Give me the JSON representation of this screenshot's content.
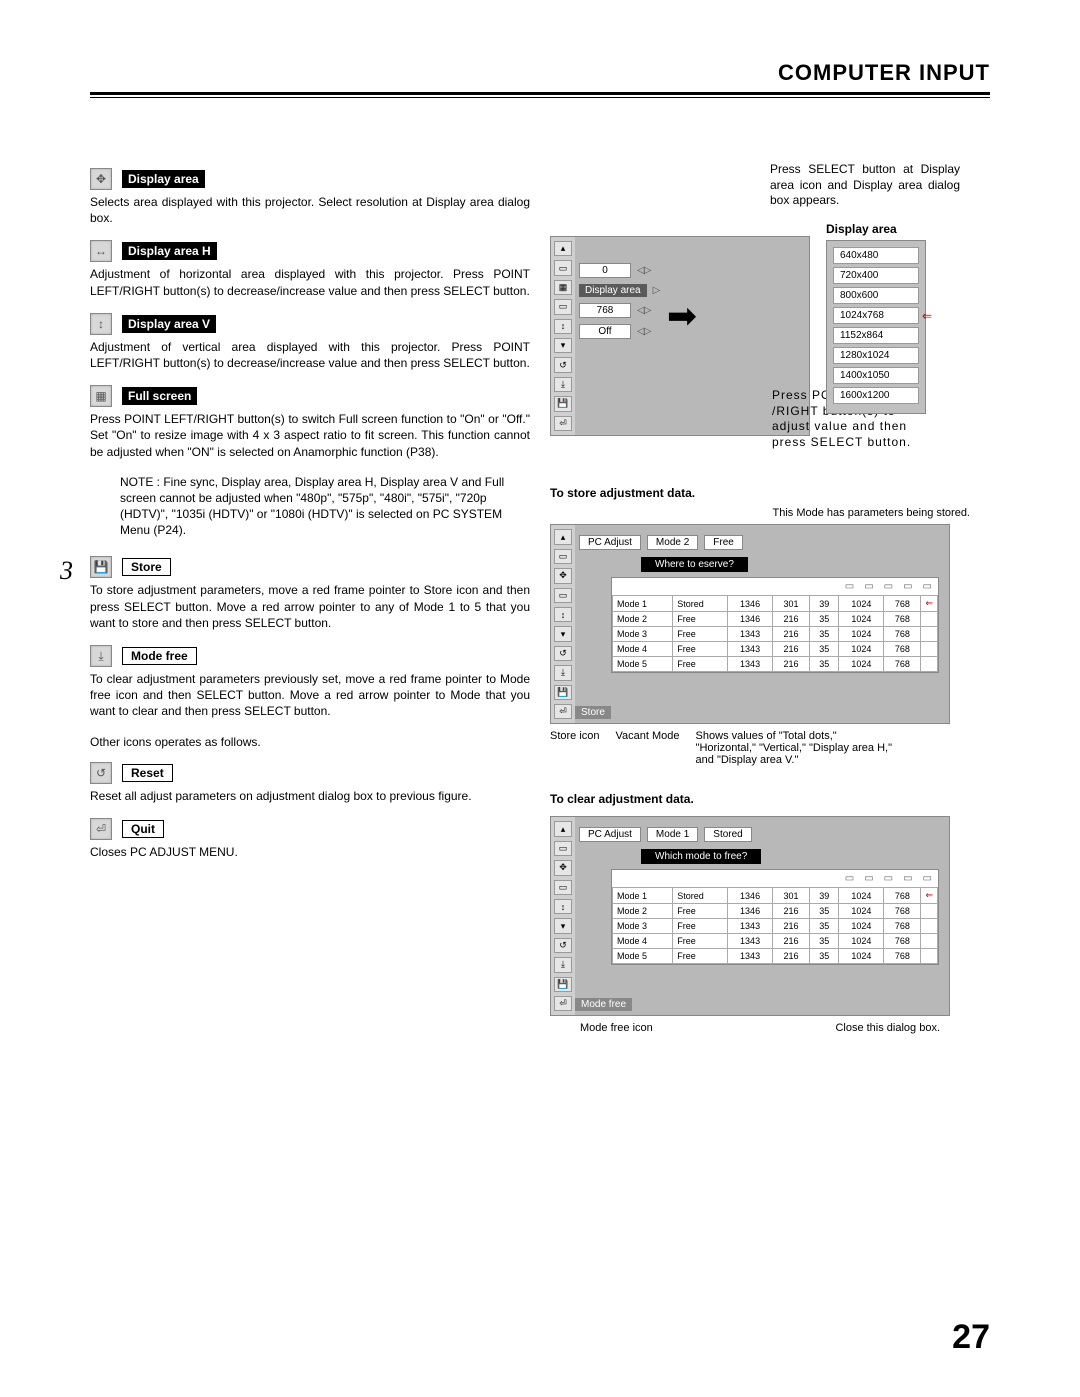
{
  "header": {
    "title": "COMPUTER INPUT"
  },
  "page_number": "27",
  "left": {
    "display_area": {
      "label": "Display area",
      "text": "Selects area displayed with this projector. Select resolution at Display area dialog box."
    },
    "display_area_h": {
      "label": "Display area H",
      "text": "Adjustment of horizontal area displayed with this projector.  Press POINT LEFT/RIGHT button(s) to decrease/increase value and then press SELECT button."
    },
    "display_area_v": {
      "label": "Display area V",
      "text": "Adjustment of vertical area displayed with this projector.  Press POINT LEFT/RIGHT button(s) to decrease/increase value and then press SELECT button."
    },
    "full_screen": {
      "label": "Full screen",
      "text": "Press POINT LEFT/RIGHT button(s) to switch Full screen function to \"On\" or \"Off.\"  Set \"On\" to resize image with 4 x 3 aspect ratio to fit screen. This function cannot be adjusted when \"ON\" is selected on Anamorphic function (P38)."
    },
    "note": "NOTE : Fine sync, Display area, Display area H, Display area V and Full screen cannot be adjusted when \"480p\", \"575p\", \"480i\", \"575i\", \"720p (HDTV)\", \"1035i (HDTV)\" or \"1080i (HDTV)\" is selected on PC SYSTEM Menu (P24).",
    "step_number": "3",
    "store": {
      "label": "Store",
      "text": "To store adjustment parameters, move a red frame pointer to Store icon and then press SELECT button.  Move a red arrow pointer to any of Mode 1 to 5 that you want to store and then press SELECT button."
    },
    "mode_free": {
      "label": "Mode free",
      "text": "To clear adjustment parameters previously set, move a red frame pointer to Mode free icon and then SELECT button.  Move a red arrow pointer to Mode that you want to clear and then press SELECT button."
    },
    "other_icons": "Other icons operates as follows.",
    "reset": {
      "label": "Reset",
      "text": "Reset all adjust parameters on adjustment dialog box to previous figure."
    },
    "quit": {
      "label": "Quit",
      "text": "Closes PC ADJUST MENU."
    }
  },
  "right": {
    "top": {
      "caption": "Press SELECT button at Display area icon and Display area dialog box appears.",
      "list_title": "Display area",
      "shot1": {
        "value_0": "0",
        "display_area": "Display area",
        "value_768": "768",
        "value_off": "Off"
      },
      "resolutions": [
        "640x480",
        "720x400",
        "800x600",
        "1024x768",
        "1152x864",
        "1280x1024",
        "1400x1050",
        "1600x1200"
      ],
      "caption2": "Press POINT LEFT /RIGHT button(s) to adjust value and then press SELECT button."
    },
    "store": {
      "heading": "To store adjustment data.",
      "caption_top": "This Mode has parameters being stored.",
      "header_left": "PC Adjust",
      "header_mode": "Mode 2",
      "header_free": "Free",
      "dialog_title": "Where to  eserve?",
      "rows": [
        [
          "Mode 1",
          "Stored",
          "1346",
          "301",
          "39",
          "1024",
          "768"
        ],
        [
          "Mode 2",
          "Free",
          "1346",
          "216",
          "35",
          "1024",
          "768"
        ],
        [
          "Mode 3",
          "Free",
          "1343",
          "216",
          "35",
          "1024",
          "768"
        ],
        [
          "Mode 4",
          "Free",
          "1343",
          "216",
          "35",
          "1024",
          "768"
        ],
        [
          "Mode 5",
          "Free",
          "1343",
          "216",
          "35",
          "1024",
          "768"
        ]
      ],
      "footer_label": "Store",
      "callouts": {
        "a": "Store icon",
        "b": "Vacant Mode",
        "c": "Shows values of \"Total dots,\" \"Horizontal,\" \"Vertical,\" \"Display area H,\" and \"Display area V.\""
      }
    },
    "clear": {
      "heading": "To clear adjustment data.",
      "header_left": "PC Adjust",
      "header_mode": "Mode 1",
      "header_free": "Stored",
      "dialog_title": "Which mode to free?",
      "rows": [
        [
          "Mode 1",
          "Stored",
          "1346",
          "301",
          "39",
          "1024",
          "768"
        ],
        [
          "Mode 2",
          "Free",
          "1346",
          "216",
          "35",
          "1024",
          "768"
        ],
        [
          "Mode 3",
          "Free",
          "1343",
          "216",
          "35",
          "1024",
          "768"
        ],
        [
          "Mode 4",
          "Free",
          "1343",
          "216",
          "35",
          "1024",
          "768"
        ],
        [
          "Mode 5",
          "Free",
          "1343",
          "216",
          "35",
          "1024",
          "768"
        ]
      ],
      "footer_label": "Mode free",
      "callouts": {
        "a": "Mode free icon",
        "b": "Close this dialog box."
      }
    }
  }
}
